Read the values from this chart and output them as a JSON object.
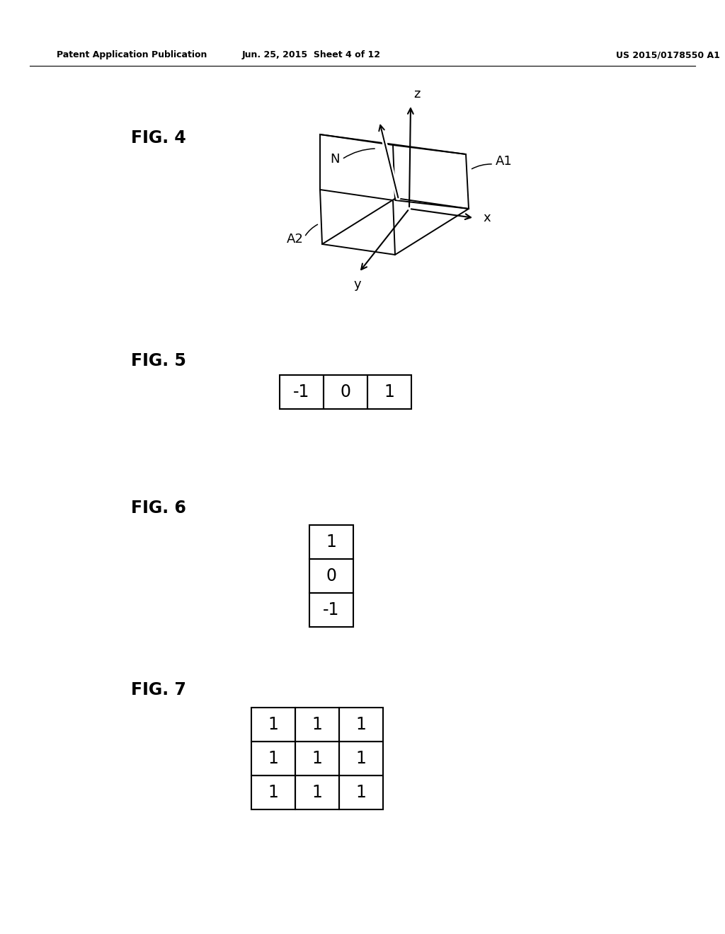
{
  "header_left": "Patent Application Publication",
  "header_center": "Jun. 25, 2015  Sheet 4 of 12",
  "header_right": "US 2015/0178550 A1",
  "fig4_label": "FIG. 4",
  "fig5_label": "FIG. 5",
  "fig6_label": "FIG. 6",
  "fig7_label": "FIG. 7",
  "fig5_data": [
    [
      -1,
      0,
      1
    ]
  ],
  "fig6_data": [
    [
      1
    ],
    [
      0
    ],
    [
      -1
    ]
  ],
  "fig7_data": [
    [
      1,
      1,
      1
    ],
    [
      1,
      1,
      1
    ],
    [
      1,
      1,
      1
    ]
  ],
  "bg_color": "#ffffff",
  "line_color": "#000000",
  "text_color": "#000000"
}
